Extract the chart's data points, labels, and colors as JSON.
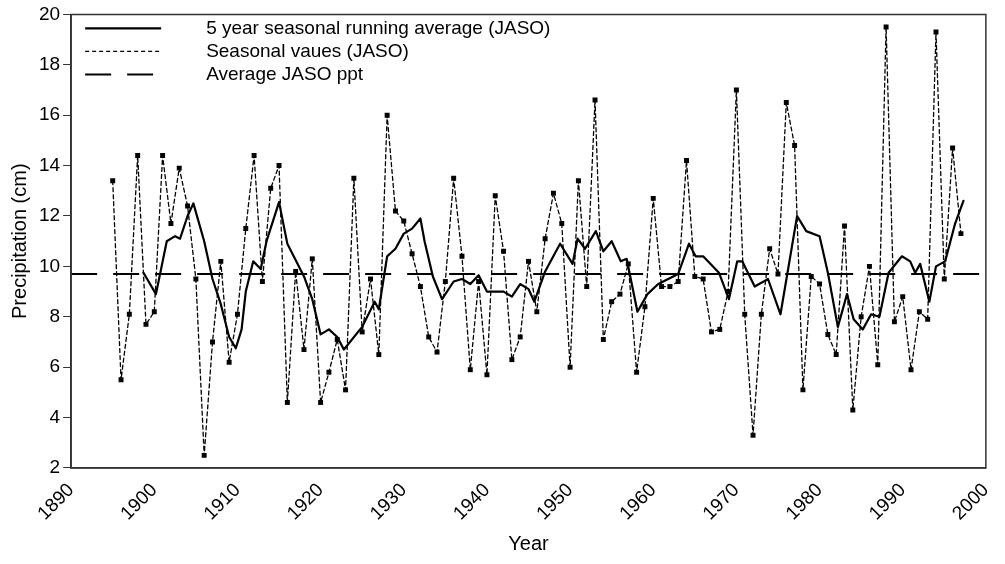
{
  "chart_data": {
    "type": "line",
    "xlabel": "Year",
    "ylabel": "Precipitation (cm)",
    "xlim": [
      1890,
      2000
    ],
    "xticks": [
      1890,
      1900,
      1910,
      1920,
      1930,
      1940,
      1950,
      1960,
      1970,
      1980,
      1990,
      2000
    ],
    "ylim": [
      2,
      20
    ],
    "yticks": [
      2,
      4,
      6,
      8,
      10,
      12,
      14,
      16,
      18,
      20
    ],
    "grid": false,
    "legend": "top left",
    "series": [
      {
        "name": "5 year seasonal running average (JASO)",
        "color": "#000000",
        "line_style": "solid",
        "marker": "none",
        "x": [
          1898.7,
          1900.2,
          1901.5,
          1902.5,
          1903.1,
          1904.0,
          1904.7,
          1906.0,
          1907.0,
          1908.0,
          1909.0,
          1909.8,
          1910.5,
          1911.0,
          1911.9,
          1912.8,
          1913.5,
          1915.0,
          1916.0,
          1918.0,
          1919.0,
          1920.0,
          1921.0,
          1922.0,
          1922.8,
          1925.0,
          1926.5,
          1927.0,
          1928.0,
          1929.0,
          1930.0,
          1931.0,
          1932.0,
          1932.5,
          1933.5,
          1934.6,
          1936.0,
          1937.0,
          1938.0,
          1939.0,
          1940.0,
          1942.0,
          1943.0,
          1944.0,
          1945.0,
          1945.7,
          1947.0,
          1948.8,
          1950.3,
          1950.9,
          1951.8,
          1953.1,
          1954.0,
          1955.0,
          1956.1,
          1956.8,
          1958.1,
          1959.3,
          1960.6,
          1961.8,
          1963.0,
          1964.3,
          1965.1,
          1966.0,
          1967.9,
          1969.1,
          1970.1,
          1970.7,
          1972.2,
          1973.8,
          1975.3,
          1977.3,
          1978.4,
          1980.0,
          1981.0,
          1982.2,
          1983.3,
          1984.1,
          1985.2,
          1986.2,
          1987.2,
          1988.3,
          1989.9,
          1990.9,
          1991.5,
          1992.1,
          1993.2,
          1994.0,
          1995.1,
          1996.3,
          1997.3
        ],
        "values": [
          9.75,
          8.9,
          11.0,
          11.2,
          11.1,
          12.0,
          12.5,
          11.0,
          9.5,
          8.5,
          7.2,
          6.75,
          7.5,
          9.0,
          10.2,
          9.9,
          11.0,
          12.55,
          10.9,
          9.6,
          8.7,
          7.3,
          7.5,
          7.2,
          6.7,
          7.6,
          8.6,
          8.3,
          10.4,
          10.7,
          11.3,
          11.5,
          11.9,
          11.0,
          9.6,
          8.7,
          9.4,
          9.5,
          9.3,
          9.65,
          9.0,
          9.0,
          8.8,
          9.3,
          9.1,
          8.6,
          9.8,
          10.9,
          10.1,
          11.1,
          10.7,
          11.4,
          10.6,
          11.0,
          10.2,
          10.3,
          8.2,
          8.9,
          9.3,
          9.5,
          9.7,
          10.9,
          10.4,
          10.4,
          9.75,
          8.7,
          10.2,
          10.2,
          9.2,
          9.5,
          8.1,
          12.0,
          11.4,
          11.2,
          9.75,
          7.6,
          8.9,
          7.9,
          7.5,
          8.1,
          8.0,
          9.75,
          10.4,
          10.2,
          9.75,
          10.1,
          8.6,
          10.0,
          10.2,
          11.7,
          12.6
        ]
      },
      {
        "name": "Seasonal vaues (JASO)",
        "color": "#000000",
        "line_style": "dashed",
        "marker": "square",
        "x": [
          1895,
          1896,
          1897,
          1898,
          1899,
          1900,
          1901,
          1902,
          1903,
          1904,
          1905,
          1906,
          1907,
          1908,
          1909,
          1910,
          1911,
          1912,
          1913,
          1914,
          1915,
          1916,
          1917,
          1918,
          1919,
          1920,
          1921,
          1922,
          1923,
          1924,
          1925,
          1926,
          1927,
          1928,
          1929,
          1930,
          1931,
          1932,
          1933,
          1934,
          1935,
          1936,
          1937,
          1938,
          1939,
          1940,
          1941,
          1942,
          1943,
          1944,
          1945,
          1946,
          1947,
          1948,
          1949,
          1950,
          1951,
          1952,
          1953,
          1954,
          1955,
          1956,
          1957,
          1958,
          1959,
          1960,
          1961,
          1962,
          1963,
          1964,
          1965,
          1966,
          1967,
          1968,
          1969,
          1970,
          1971,
          1972,
          1973,
          1974,
          1975,
          1976,
          1977,
          1978,
          1979,
          1980,
          1981,
          1982,
          1983,
          1984,
          1985,
          1986,
          1987,
          1988,
          1989,
          1990,
          1991,
          1992,
          1993,
          1994,
          1995,
          1996,
          1997
        ],
        "values": [
          13.4,
          5.5,
          8.1,
          14.4,
          7.7,
          8.2,
          14.4,
          11.7,
          13.9,
          12.4,
          9.5,
          2.5,
          7.0,
          10.2,
          6.2,
          8.1,
          11.5,
          14.4,
          9.4,
          13.1,
          14.0,
          4.6,
          9.8,
          6.7,
          10.3,
          4.6,
          5.8,
          7.1,
          5.1,
          13.5,
          7.4,
          9.5,
          6.5,
          16.0,
          12.2,
          11.8,
          10.5,
          9.2,
          7.2,
          6.6,
          9.4,
          13.5,
          10.4,
          5.9,
          9.4,
          5.7,
          12.8,
          10.6,
          6.3,
          7.2,
          10.2,
          8.2,
          11.1,
          12.9,
          11.7,
          6.0,
          13.4,
          9.2,
          16.6,
          7.1,
          8.6,
          8.9,
          10.1,
          5.8,
          8.4,
          12.7,
          9.2,
          9.2,
          9.4,
          14.2,
          9.6,
          9.5,
          7.4,
          7.5,
          9.0,
          17.0,
          8.1,
          3.3,
          8.1,
          10.7,
          9.7,
          16.5,
          14.8,
          5.1,
          9.6,
          9.3,
          7.3,
          6.5,
          11.6,
          4.3,
          8.0,
          10.0,
          6.1,
          19.5,
          7.8,
          8.8,
          5.9,
          8.2,
          7.9,
          19.3,
          9.5,
          14.7,
          11.3
        ]
      }
    ],
    "ref_lines": [
      {
        "axis": "y",
        "value": 9.7,
        "label": "Average JASO ppt",
        "color": "#000000",
        "line_style": "dashed"
      }
    ]
  }
}
